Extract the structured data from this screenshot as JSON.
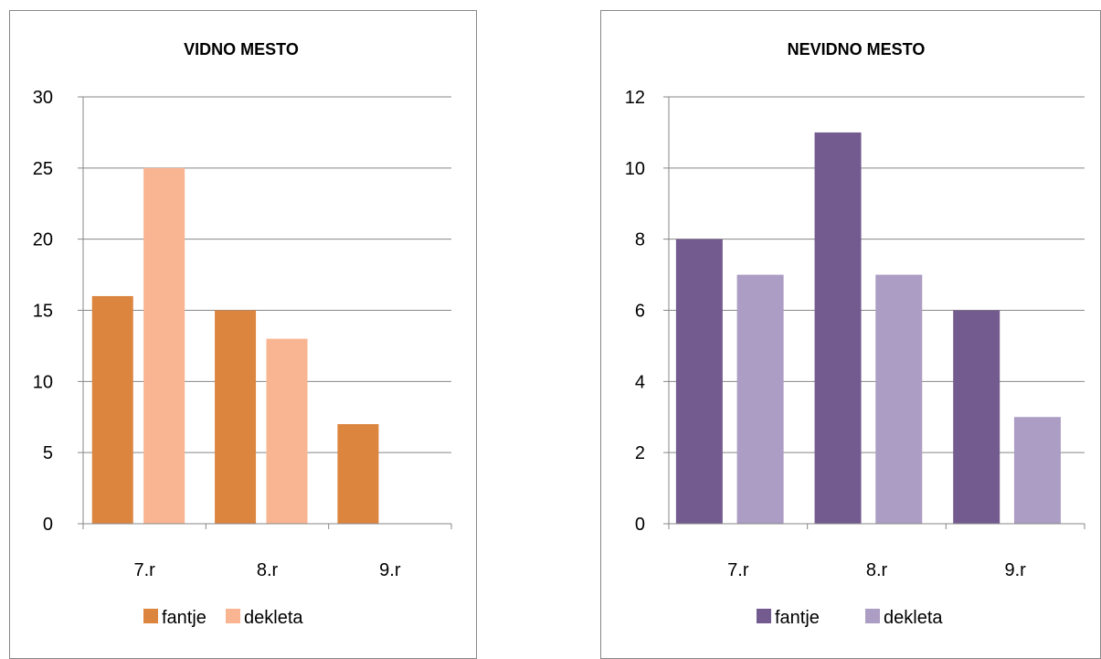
{
  "chart_data": [
    {
      "type": "bar",
      "title": "VIDNO MESTO",
      "categories": [
        "7.r",
        "8.r",
        "9.r"
      ],
      "series": [
        {
          "name": "fantje",
          "values": [
            16,
            15,
            7
          ],
          "color": "#DC853F"
        },
        {
          "name": "dekleta",
          "values": [
            25,
            13,
            0
          ],
          "color": "#F9B591"
        }
      ],
      "ylim": [
        0,
        30
      ],
      "yticks": [
        "0",
        "5",
        "10",
        "15",
        "20",
        "25",
        "30"
      ],
      "grid": true,
      "legend_position": "bottom"
    },
    {
      "type": "bar",
      "title": "NEVIDNO MESTO",
      "categories": [
        "7.r",
        "8.r",
        "9.r"
      ],
      "series": [
        {
          "name": "fantje",
          "values": [
            8,
            11,
            6
          ],
          "color": "#735A8F"
        },
        {
          "name": "dekleta",
          "values": [
            7,
            7,
            3
          ],
          "color": "#AB9DC3"
        }
      ],
      "ylim": [
        0,
        12
      ],
      "yticks": [
        "0",
        "2",
        "4",
        "6",
        "8",
        "10",
        "12"
      ],
      "grid": true,
      "legend_position": "bottom"
    }
  ]
}
